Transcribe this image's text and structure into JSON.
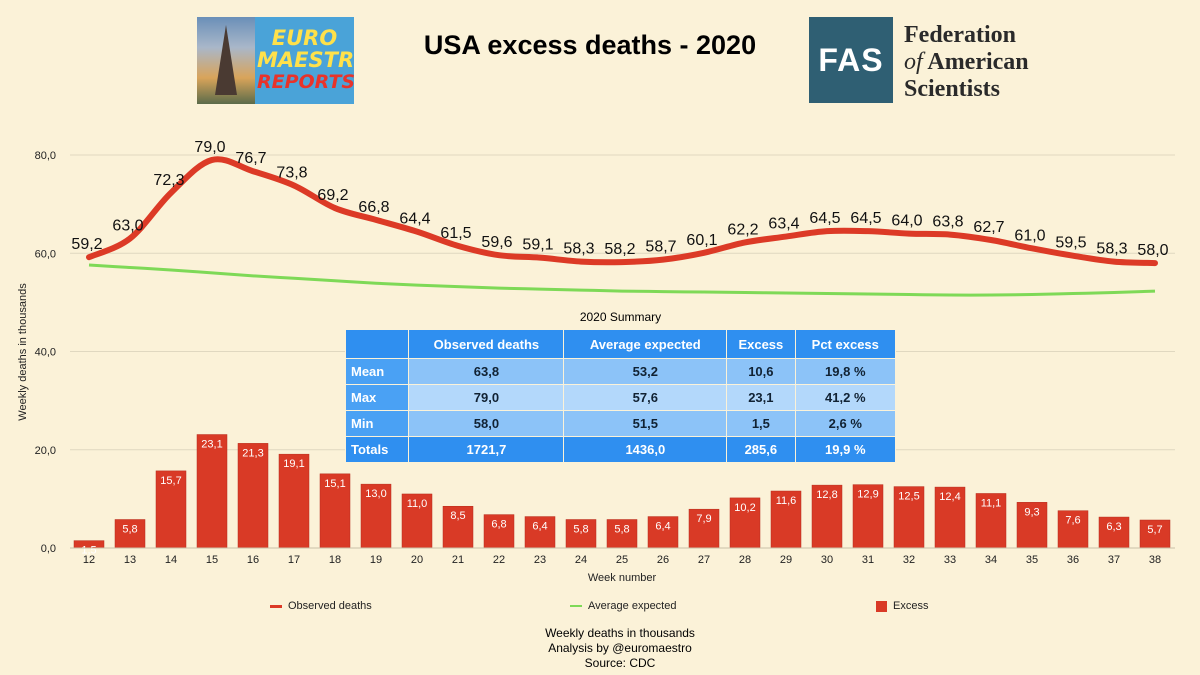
{
  "header": {
    "title": "USA excess deaths - 2020",
    "logo_left": {
      "line1": "EURO",
      "line2": "MAESTRO",
      "line3": "REPORTS"
    },
    "logo_right": {
      "abbr": "FAS",
      "line1": "Federation",
      "line2_of": "of",
      "line2": "American",
      "line3": "Scientists"
    }
  },
  "colors": {
    "observed": "#dc3a26",
    "expected": "#7ed957",
    "excess": "#d93a26",
    "background": "#fbf2d8",
    "table_header": "#2f8ff0"
  },
  "chart_data": {
    "type": "bar",
    "xlabel": "Week number",
    "ylabel": "Weekly deaths in thousands",
    "ylim": [
      0,
      80
    ],
    "ytick_values": [
      0,
      20,
      40,
      60,
      80
    ],
    "yticks": [
      "0,0",
      "20,0",
      "40,0",
      "60,0",
      "80,0"
    ],
    "categories": [
      "12",
      "13",
      "14",
      "15",
      "16",
      "17",
      "18",
      "19",
      "20",
      "21",
      "22",
      "23",
      "24",
      "25",
      "26",
      "27",
      "28",
      "29",
      "30",
      "31",
      "32",
      "33",
      "34",
      "35",
      "36",
      "37",
      "38"
    ],
    "series": [
      {
        "name": "Observed deaths",
        "kind": "line",
        "values": [
          59.2,
          63.0,
          72.3,
          79.0,
          76.7,
          73.8,
          69.2,
          66.8,
          64.4,
          61.5,
          59.6,
          59.1,
          58.3,
          58.2,
          58.7,
          60.1,
          62.2,
          63.4,
          64.5,
          64.5,
          64.0,
          63.8,
          62.7,
          61.0,
          59.5,
          58.3,
          58.0
        ],
        "labels": [
          "59,2",
          "63,0",
          "72,3",
          "79,0",
          "76,7",
          "73,8",
          "69,2",
          "66,8",
          "64,4",
          "61,5",
          "59,6",
          "59,1",
          "58,3",
          "58,2",
          "58,7",
          "60,1",
          "62,2",
          "63,4",
          "64,5",
          "64,5",
          "64,0",
          "63,8",
          "62,7",
          "61,0",
          "59,5",
          "58,3",
          "58,0"
        ]
      },
      {
        "name": "Average expected",
        "kind": "line",
        "values": [
          57.6,
          57.1,
          56.6,
          56.0,
          55.4,
          54.9,
          54.4,
          53.9,
          53.5,
          53.2,
          52.9,
          52.7,
          52.5,
          52.3,
          52.2,
          52.1,
          52.0,
          51.9,
          51.8,
          51.7,
          51.6,
          51.5,
          51.5,
          51.6,
          51.8,
          52.0,
          52.3
        ]
      },
      {
        "name": "Excess",
        "kind": "bar",
        "values": [
          1.5,
          5.8,
          15.7,
          23.1,
          21.3,
          19.1,
          15.1,
          13.0,
          11.0,
          8.5,
          6.8,
          6.4,
          5.8,
          5.8,
          6.4,
          7.9,
          10.2,
          11.6,
          12.8,
          12.9,
          12.5,
          12.4,
          11.1,
          9.3,
          7.6,
          6.3,
          5.7
        ],
        "labels": [
          "1,5",
          "5,8",
          "15,7",
          "23,1",
          "21,3",
          "19,1",
          "15,1",
          "13,0",
          "11,0",
          "8,5",
          "6,8",
          "6,4",
          "5,8",
          "5,8",
          "6,4",
          "7,9",
          "10,2",
          "11,6",
          "12,8",
          "12,9",
          "12,5",
          "12,4",
          "11,1",
          "9,3",
          "7,6",
          "6,3",
          "5,7"
        ]
      }
    ],
    "legend_placement": "bottom",
    "grid": true
  },
  "summary": {
    "title": "2020 Summary",
    "columns": [
      "",
      "Observed deaths",
      "Average expected",
      "Excess",
      "Pct excess"
    ],
    "rows": [
      [
        "Mean",
        "63,8",
        "53,2",
        "10,6",
        "19,8 %"
      ],
      [
        "Max",
        "79,0",
        "57,6",
        "23,1",
        "41,2 %"
      ],
      [
        "Min",
        "58,0",
        "51,5",
        "1,5",
        "2,6 %"
      ],
      [
        "Totals",
        "1721,7",
        "1436,0",
        "285,6",
        "19,9 %"
      ]
    ]
  },
  "footer": {
    "line1": "Weekly deaths in thousands",
    "line2": "Analysis by @euromaestro",
    "line3": "Source: CDC"
  }
}
